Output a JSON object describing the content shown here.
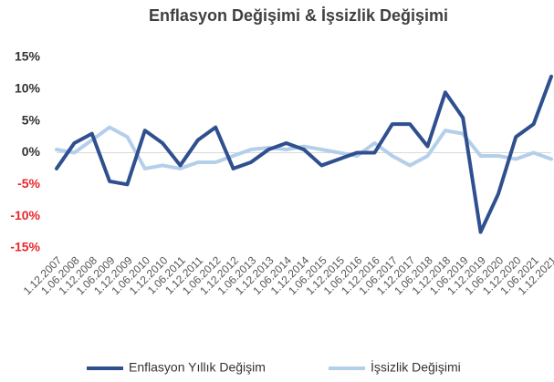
{
  "chart_data": {
    "type": "line",
    "title": "Enflasyon Değişimi & İşsizlik Değişimi",
    "categories": [
      "1.12.2007",
      "1.06.2008",
      "1.12.2008",
      "1.06.2009",
      "1.12.2009",
      "1.06.2010",
      "1.12.2010",
      "1.06.2011",
      "1.12.2011",
      "1.06.2012",
      "1.12.2012",
      "1.06.2013",
      "1.12.2013",
      "1.06.2014",
      "1.12.2014",
      "1.06.2015",
      "1.12.2015",
      "1.06.2016",
      "1.12.2016",
      "1.06.2017",
      "1.12.2017",
      "1.06.2018",
      "1.12.2018",
      "1.06.2019",
      "1.12.2019",
      "1.06.2020",
      "1.12.2020",
      "1.06.2021",
      "1.12.2021"
    ],
    "series": [
      {
        "name": "Enflasyon Yıllık Değişim",
        "color": "#2f4f8f",
        "values": [
          -2.5,
          1.5,
          3,
          -4.5,
          -5,
          3.5,
          1.5,
          -2,
          2,
          4,
          -2.5,
          -1.5,
          0.5,
          1.5,
          0.5,
          -2,
          -1,
          0,
          0,
          4.5,
          4.5,
          1,
          9.5,
          5.5,
          -12.5,
          -6.5,
          2.5,
          4.5,
          12
        ]
      },
      {
        "name": "İşsizlik Değişimi",
        "color": "#b4cfea",
        "values": [
          0.5,
          0,
          2,
          4,
          2.5,
          -2.5,
          -2,
          -2.5,
          -1.5,
          -1.5,
          -0.5,
          0.5,
          0.8,
          0.5,
          1,
          0.5,
          0,
          -0.5,
          1.5,
          -0.5,
          -2,
          -0.5,
          3.5,
          3,
          -0.5,
          -0.5,
          -1,
          0,
          -1
        ]
      }
    ],
    "ylim": [
      -15,
      15
    ],
    "yticks": [
      {
        "value": 15,
        "label": "15%"
      },
      {
        "value": 10,
        "label": "10%"
      },
      {
        "value": 5,
        "label": "5%"
      },
      {
        "value": 0,
        "label": "0%"
      },
      {
        "value": -5,
        "label": "-5%"
      },
      {
        "value": -10,
        "label": "-10%"
      },
      {
        "value": -15,
        "label": "-15%"
      }
    ],
    "negative_tick_color": "#e8262a",
    "legend": "bottom"
  }
}
